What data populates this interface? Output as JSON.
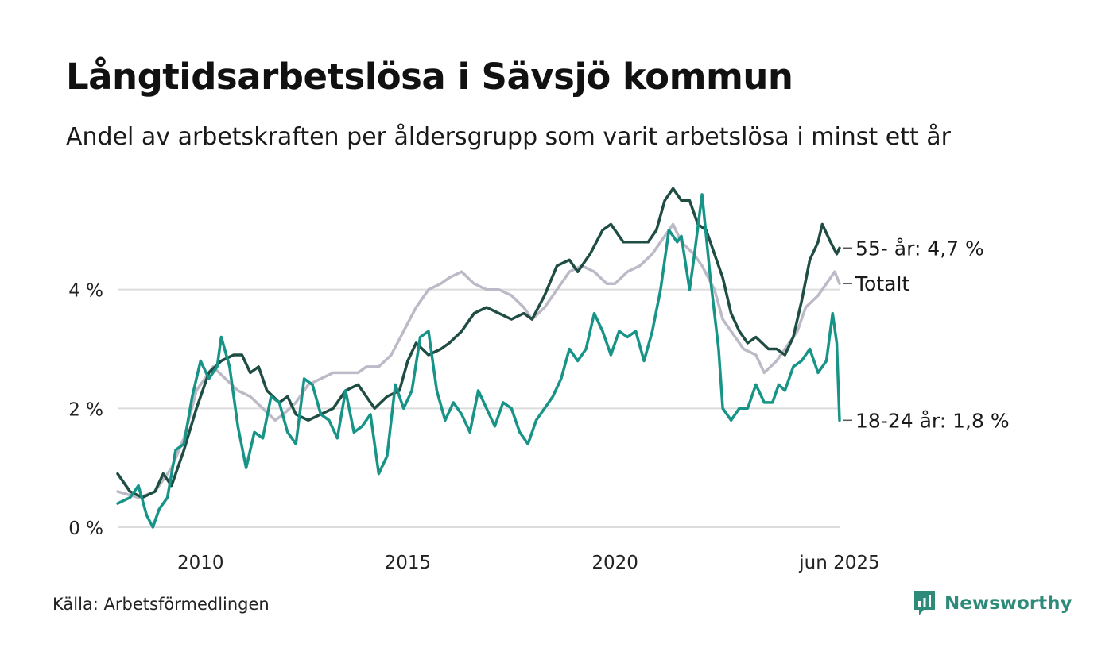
{
  "title": "Långtidsarbetslösa i Sävsjö kommun",
  "subtitle": "Andel av arbetskraften per åldersgrupp som varit arbetslösa i minst ett år",
  "source": "Källa: Arbetsförmedlingen",
  "brand": "Newsworthy",
  "colors": {
    "total": "#bdbac8",
    "age55": "#1f4d43",
    "age18_24": "#179487",
    "grid": "#dcdcdc",
    "brand": "#2e8b7a"
  },
  "chart_data": {
    "type": "line",
    "xlim": [
      2008.0,
      2025.417
    ],
    "ylim": [
      0,
      6
    ],
    "yticks": [
      {
        "v": 0,
        "label": "0 %"
      },
      {
        "v": 2,
        "label": "2 %"
      },
      {
        "v": 4,
        "label": "4 %"
      }
    ],
    "xticks": [
      {
        "v": 2010,
        "label": "2010"
      },
      {
        "v": 2015,
        "label": "2015"
      },
      {
        "v": 2020,
        "label": "2020"
      },
      {
        "v": 2025.417,
        "label": "jun 2025"
      }
    ],
    "series": [
      {
        "key": "total",
        "name": "Totalt",
        "end_label": "Totalt",
        "points": [
          [
            2008.0,
            0.6
          ],
          [
            2008.5,
            0.5
          ],
          [
            2008.9,
            0.6
          ],
          [
            2009.3,
            1.0
          ],
          [
            2009.6,
            1.5
          ],
          [
            2009.9,
            2.3
          ],
          [
            2010.3,
            2.7
          ],
          [
            2010.6,
            2.5
          ],
          [
            2010.9,
            2.3
          ],
          [
            2011.2,
            2.2
          ],
          [
            2011.5,
            2.0
          ],
          [
            2011.8,
            1.8
          ],
          [
            2012.0,
            1.9
          ],
          [
            2012.3,
            2.1
          ],
          [
            2012.6,
            2.4
          ],
          [
            2012.9,
            2.5
          ],
          [
            2013.2,
            2.6
          ],
          [
            2013.5,
            2.6
          ],
          [
            2013.8,
            2.6
          ],
          [
            2014.0,
            2.7
          ],
          [
            2014.3,
            2.7
          ],
          [
            2014.6,
            2.9
          ],
          [
            2014.9,
            3.3
          ],
          [
            2015.2,
            3.7
          ],
          [
            2015.5,
            4.0
          ],
          [
            2015.8,
            4.1
          ],
          [
            2016.0,
            4.2
          ],
          [
            2016.3,
            4.3
          ],
          [
            2016.6,
            4.1
          ],
          [
            2016.9,
            4.0
          ],
          [
            2017.2,
            4.0
          ],
          [
            2017.5,
            3.9
          ],
          [
            2017.8,
            3.7
          ],
          [
            2018.0,
            3.5
          ],
          [
            2018.3,
            3.7
          ],
          [
            2018.6,
            4.0
          ],
          [
            2018.9,
            4.3
          ],
          [
            2019.2,
            4.4
          ],
          [
            2019.5,
            4.3
          ],
          [
            2019.8,
            4.1
          ],
          [
            2020.0,
            4.1
          ],
          [
            2020.3,
            4.3
          ],
          [
            2020.6,
            4.4
          ],
          [
            2020.9,
            4.6
          ],
          [
            2021.2,
            4.9
          ],
          [
            2021.4,
            5.1
          ],
          [
            2021.6,
            4.8
          ],
          [
            2021.9,
            4.6
          ],
          [
            2022.1,
            4.4
          ],
          [
            2022.4,
            4.0
          ],
          [
            2022.6,
            3.5
          ],
          [
            2022.9,
            3.2
          ],
          [
            2023.1,
            3.0
          ],
          [
            2023.4,
            2.9
          ],
          [
            2023.6,
            2.6
          ],
          [
            2023.9,
            2.8
          ],
          [
            2024.1,
            3.0
          ],
          [
            2024.4,
            3.3
          ],
          [
            2024.6,
            3.7
          ],
          [
            2024.9,
            3.9
          ],
          [
            2025.1,
            4.1
          ],
          [
            2025.3,
            4.3
          ],
          [
            2025.417,
            4.1
          ]
        ]
      },
      {
        "key": "age55",
        "name": "55- år",
        "end_label": "55- år: 4,7 %",
        "points": [
          [
            2008.0,
            0.9
          ],
          [
            2008.3,
            0.6
          ],
          [
            2008.6,
            0.5
          ],
          [
            2008.9,
            0.6
          ],
          [
            2009.1,
            0.9
          ],
          [
            2009.3,
            0.7
          ],
          [
            2009.6,
            1.3
          ],
          [
            2009.9,
            2.0
          ],
          [
            2010.2,
            2.6
          ],
          [
            2010.5,
            2.8
          ],
          [
            2010.8,
            2.9
          ],
          [
            2011.0,
            2.9
          ],
          [
            2011.2,
            2.6
          ],
          [
            2011.4,
            2.7
          ],
          [
            2011.6,
            2.3
          ],
          [
            2011.9,
            2.1
          ],
          [
            2012.1,
            2.2
          ],
          [
            2012.3,
            1.9
          ],
          [
            2012.6,
            1.8
          ],
          [
            2012.9,
            1.9
          ],
          [
            2013.2,
            2.0
          ],
          [
            2013.5,
            2.3
          ],
          [
            2013.8,
            2.4
          ],
          [
            2014.0,
            2.2
          ],
          [
            2014.2,
            2.0
          ],
          [
            2014.5,
            2.2
          ],
          [
            2014.8,
            2.3
          ],
          [
            2015.0,
            2.8
          ],
          [
            2015.2,
            3.1
          ],
          [
            2015.5,
            2.9
          ],
          [
            2015.8,
            3.0
          ],
          [
            2016.0,
            3.1
          ],
          [
            2016.3,
            3.3
          ],
          [
            2016.6,
            3.6
          ],
          [
            2016.9,
            3.7
          ],
          [
            2017.2,
            3.6
          ],
          [
            2017.5,
            3.5
          ],
          [
            2017.8,
            3.6
          ],
          [
            2018.0,
            3.5
          ],
          [
            2018.3,
            3.9
          ],
          [
            2018.6,
            4.4
          ],
          [
            2018.9,
            4.5
          ],
          [
            2019.1,
            4.3
          ],
          [
            2019.4,
            4.6
          ],
          [
            2019.7,
            5.0
          ],
          [
            2019.9,
            5.1
          ],
          [
            2020.2,
            4.8
          ],
          [
            2020.5,
            4.8
          ],
          [
            2020.8,
            4.8
          ],
          [
            2021.0,
            5.0
          ],
          [
            2021.2,
            5.5
          ],
          [
            2021.4,
            5.7
          ],
          [
            2021.6,
            5.5
          ],
          [
            2021.8,
            5.5
          ],
          [
            2022.0,
            5.1
          ],
          [
            2022.2,
            5.0
          ],
          [
            2022.4,
            4.6
          ],
          [
            2022.6,
            4.2
          ],
          [
            2022.8,
            3.6
          ],
          [
            2023.0,
            3.3
          ],
          [
            2023.2,
            3.1
          ],
          [
            2023.4,
            3.2
          ],
          [
            2023.7,
            3.0
          ],
          [
            2023.9,
            3.0
          ],
          [
            2024.1,
            2.9
          ],
          [
            2024.3,
            3.2
          ],
          [
            2024.5,
            3.8
          ],
          [
            2024.7,
            4.5
          ],
          [
            2024.9,
            4.8
          ],
          [
            2025.0,
            5.1
          ],
          [
            2025.2,
            4.8
          ],
          [
            2025.35,
            4.6
          ],
          [
            2025.417,
            4.7
          ]
        ]
      },
      {
        "key": "age18_24",
        "name": "18-24 år",
        "end_label": "18-24 år: 1,8 %",
        "points": [
          [
            2008.0,
            0.4
          ],
          [
            2008.3,
            0.5
          ],
          [
            2008.5,
            0.7
          ],
          [
            2008.7,
            0.2
          ],
          [
            2008.85,
            0.0
          ],
          [
            2009.0,
            0.3
          ],
          [
            2009.2,
            0.5
          ],
          [
            2009.4,
            1.3
          ],
          [
            2009.6,
            1.4
          ],
          [
            2009.8,
            2.2
          ],
          [
            2010.0,
            2.8
          ],
          [
            2010.2,
            2.5
          ],
          [
            2010.4,
            2.7
          ],
          [
            2010.5,
            3.2
          ],
          [
            2010.7,
            2.7
          ],
          [
            2010.9,
            1.7
          ],
          [
            2011.1,
            1.0
          ],
          [
            2011.3,
            1.6
          ],
          [
            2011.5,
            1.5
          ],
          [
            2011.7,
            2.2
          ],
          [
            2011.9,
            2.1
          ],
          [
            2012.1,
            1.6
          ],
          [
            2012.3,
            1.4
          ],
          [
            2012.5,
            2.5
          ],
          [
            2012.7,
            2.4
          ],
          [
            2012.9,
            1.9
          ],
          [
            2013.1,
            1.8
          ],
          [
            2013.3,
            1.5
          ],
          [
            2013.5,
            2.3
          ],
          [
            2013.7,
            1.6
          ],
          [
            2013.9,
            1.7
          ],
          [
            2014.1,
            1.9
          ],
          [
            2014.3,
            0.9
          ],
          [
            2014.5,
            1.2
          ],
          [
            2014.7,
            2.4
          ],
          [
            2014.9,
            2.0
          ],
          [
            2015.1,
            2.3
          ],
          [
            2015.3,
            3.2
          ],
          [
            2015.5,
            3.3
          ],
          [
            2015.7,
            2.3
          ],
          [
            2015.9,
            1.8
          ],
          [
            2016.1,
            2.1
          ],
          [
            2016.3,
            1.9
          ],
          [
            2016.5,
            1.6
          ],
          [
            2016.7,
            2.3
          ],
          [
            2016.9,
            2.0
          ],
          [
            2017.1,
            1.7
          ],
          [
            2017.3,
            2.1
          ],
          [
            2017.5,
            2.0
          ],
          [
            2017.7,
            1.6
          ],
          [
            2017.9,
            1.4
          ],
          [
            2018.1,
            1.8
          ],
          [
            2018.3,
            2.0
          ],
          [
            2018.5,
            2.2
          ],
          [
            2018.7,
            2.5
          ],
          [
            2018.9,
            3.0
          ],
          [
            2019.1,
            2.8
          ],
          [
            2019.3,
            3.0
          ],
          [
            2019.5,
            3.6
          ],
          [
            2019.7,
            3.3
          ],
          [
            2019.9,
            2.9
          ],
          [
            2020.1,
            3.3
          ],
          [
            2020.3,
            3.2
          ],
          [
            2020.5,
            3.3
          ],
          [
            2020.7,
            2.8
          ],
          [
            2020.9,
            3.3
          ],
          [
            2021.1,
            4.0
          ],
          [
            2021.3,
            5.0
          ],
          [
            2021.5,
            4.8
          ],
          [
            2021.6,
            4.9
          ],
          [
            2021.8,
            4.0
          ],
          [
            2021.9,
            4.5
          ],
          [
            2022.1,
            5.6
          ],
          [
            2022.3,
            4.2
          ],
          [
            2022.5,
            3.0
          ],
          [
            2022.6,
            2.0
          ],
          [
            2022.8,
            1.8
          ],
          [
            2023.0,
            2.0
          ],
          [
            2023.2,
            2.0
          ],
          [
            2023.4,
            2.4
          ],
          [
            2023.6,
            2.1
          ],
          [
            2023.8,
            2.1
          ],
          [
            2023.95,
            2.4
          ],
          [
            2024.1,
            2.3
          ],
          [
            2024.3,
            2.7
          ],
          [
            2024.5,
            2.8
          ],
          [
            2024.7,
            3.0
          ],
          [
            2024.9,
            2.6
          ],
          [
            2025.1,
            2.8
          ],
          [
            2025.25,
            3.6
          ],
          [
            2025.35,
            3.1
          ],
          [
            2025.417,
            1.8
          ]
        ]
      }
    ]
  }
}
